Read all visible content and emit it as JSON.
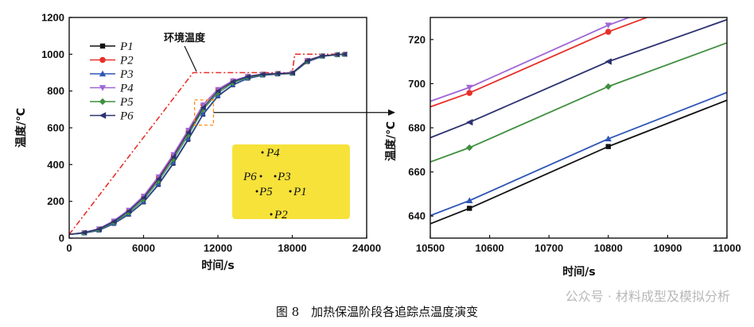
{
  "chart_data": [
    {
      "type": "line",
      "xlabel": "时间/s",
      "ylabel": "温度/℃",
      "xlim": [
        0,
        24000
      ],
      "ylim": [
        0,
        1200
      ],
      "xticks": [
        0,
        6000,
        12000,
        18000,
        24000
      ],
      "yticks": [
        0,
        200,
        400,
        600,
        800,
        1000,
        1200
      ],
      "annotation": "环境温度",
      "environment": {
        "name": "环境温度",
        "x": [
          0,
          10000,
          18000,
          18200,
          22000
        ],
        "y": [
          20,
          900,
          900,
          1000,
          1000
        ]
      },
      "series": [
        {
          "name": "P1",
          "color": "#111111",
          "marker": "square",
          "x": [
            0,
            1200,
            2400,
            3600,
            4800,
            6000,
            7200,
            8400,
            9600,
            10800,
            12000,
            13200,
            14400,
            15600,
            16800,
            18000,
            19200,
            20400,
            21600,
            22200
          ],
          "y": [
            20,
            27,
            42,
            78,
            128,
            195,
            290,
            405,
            535,
            672,
            772,
            832,
            868,
            885,
            891,
            895,
            958,
            988,
            997,
            999
          ]
        },
        {
          "name": "P2",
          "color": "#e8302a",
          "marker": "circle",
          "x": [
            0,
            1200,
            2400,
            3600,
            4800,
            6000,
            7200,
            8400,
            9600,
            10800,
            12000,
            13200,
            14400,
            15600,
            16800,
            18000,
            19200,
            20400,
            21600,
            22200
          ],
          "y": [
            20,
            30,
            50,
            92,
            150,
            225,
            330,
            450,
            582,
            724,
            808,
            856,
            880,
            892,
            896,
            899,
            967,
            992,
            998,
            1000
          ]
        },
        {
          "name": "P3",
          "color": "#2f56b6",
          "marker": "triangle-up",
          "x": [
            0,
            1200,
            2400,
            3600,
            4800,
            6000,
            7200,
            8400,
            9600,
            10800,
            12000,
            13200,
            14400,
            15600,
            16800,
            18000,
            19200,
            20400,
            21600,
            22200
          ],
          "y": [
            20,
            27,
            43,
            80,
            130,
            198,
            294,
            410,
            540,
            675,
            775,
            834,
            869,
            886,
            892,
            896,
            959,
            989,
            997,
            999
          ]
        },
        {
          "name": "P4",
          "color": "#a066d6",
          "marker": "triangle-down",
          "x": [
            0,
            1200,
            2400,
            3600,
            4800,
            6000,
            7200,
            8400,
            9600,
            10800,
            12000,
            13200,
            14400,
            15600,
            16800,
            18000,
            19200,
            20400,
            21600,
            22200
          ],
          "y": [
            20,
            31,
            52,
            95,
            154,
            230,
            335,
            456,
            588,
            726,
            810,
            857,
            881,
            892,
            896,
            899,
            968,
            992,
            998,
            1000
          ]
        },
        {
          "name": "P5",
          "color": "#3f8f3f",
          "marker": "diamond",
          "x": [
            0,
            1200,
            2400,
            3600,
            4800,
            6000,
            7200,
            8400,
            9600,
            10800,
            12000,
            13200,
            14400,
            15600,
            16800,
            18000,
            19200,
            20400,
            21600,
            22200
          ],
          "y": [
            20,
            28,
            46,
            85,
            138,
            210,
            310,
            428,
            560,
            699,
            790,
            844,
            874,
            889,
            894,
            897,
            962,
            990,
            997,
            999
          ]
        },
        {
          "name": "P6",
          "color": "#2d3270",
          "marker": "left-arrow",
          "x": [
            0,
            1200,
            2400,
            3600,
            4800,
            6000,
            7200,
            8400,
            9600,
            10800,
            12000,
            13200,
            14400,
            15600,
            16800,
            18000,
            19200,
            20400,
            21600,
            22200
          ],
          "y": [
            20,
            30,
            49,
            90,
            147,
            220,
            322,
            442,
            574,
            710,
            800,
            851,
            878,
            891,
            895,
            898,
            965,
            991,
            998,
            1000
          ]
        }
      ],
      "inset_box": {
        "x": [
          10500,
          11000
        ],
        "y": [
          636,
          730
        ]
      }
    },
    {
      "type": "line",
      "xlabel": "时间/s",
      "ylabel": "温度/℃",
      "xlim": [
        10500,
        11000
      ],
      "ylim": [
        630,
        730
      ],
      "xticks": [
        10500,
        10600,
        10700,
        10800,
        10900,
        11000
      ],
      "yticks": [
        640,
        660,
        680,
        700,
        720
      ],
      "series": [
        {
          "name": "P1",
          "color": "#111111",
          "marker": "square",
          "x": [
            10500,
            10566,
            10800,
            11000
          ],
          "y": [
            636.5,
            643.5,
            671.5,
            692.5
          ]
        },
        {
          "name": "P2",
          "color": "#e8302a",
          "marker": "circle",
          "x": [
            10500,
            10566,
            10800,
            10900
          ],
          "y": [
            689.5,
            695.8,
            723.5,
            733.5
          ]
        },
        {
          "name": "P3",
          "color": "#2f56b6",
          "marker": "triangle-up",
          "x": [
            10500,
            10566,
            10800,
            11000
          ],
          "y": [
            640.2,
            647.0,
            675.0,
            696.0
          ]
        },
        {
          "name": "P4",
          "color": "#a066d6",
          "marker": "triangle-down",
          "x": [
            10500,
            10566,
            10800,
            10900
          ],
          "y": [
            692.0,
            698.3,
            726.5,
            736.5
          ]
        },
        {
          "name": "P5",
          "color": "#3f8f3f",
          "marker": "diamond",
          "x": [
            10500,
            10566,
            10800,
            11000
          ],
          "y": [
            664.5,
            671.0,
            698.7,
            718.5
          ]
        },
        {
          "name": "P6",
          "color": "#2d3270",
          "marker": "left-arrow",
          "x": [
            10500,
            10566,
            10800,
            11000
          ],
          "y": [
            675.5,
            682.5,
            710.0,
            729.0
          ]
        }
      ]
    }
  ],
  "inset_points": {
    "fill": "#f7e23a",
    "labels": [
      "P4",
      "P6",
      "P3",
      "P5",
      "P1",
      "P2"
    ]
  },
  "caption": "图 8　加热保温阶段各追踪点温度演变",
  "watermark": "公众号 · 材料成型及模拟分析"
}
